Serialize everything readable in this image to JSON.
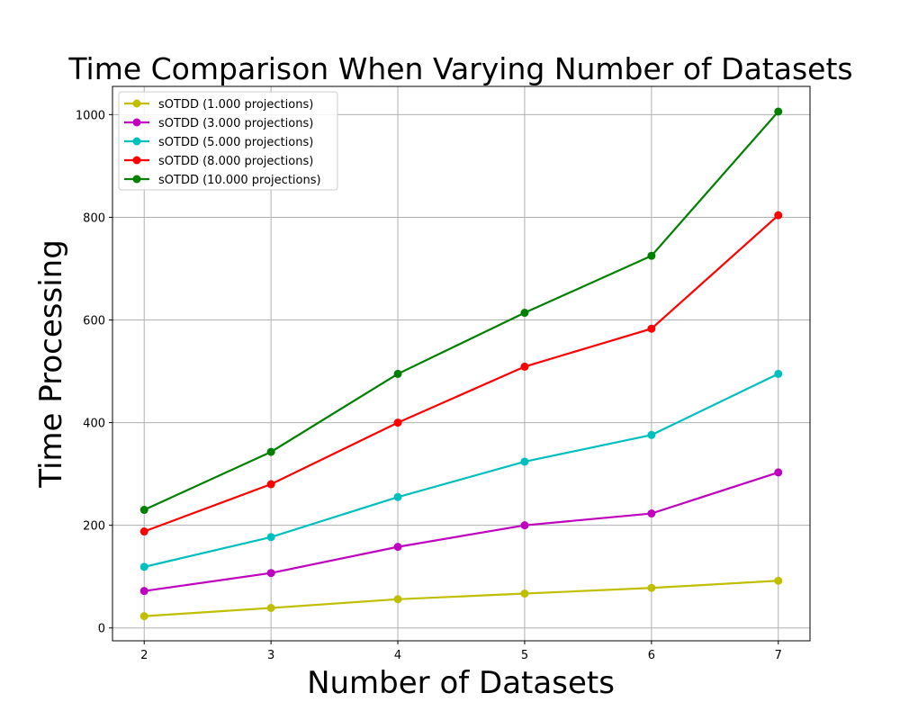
{
  "chart_data": {
    "type": "line",
    "title": "Time Comparison When Varying Number of Datasets",
    "xlabel": "Number of Datasets",
    "ylabel": "Time Processing",
    "x": [
      2,
      3,
      4,
      5,
      6,
      7
    ],
    "xticks": [
      "2",
      "3",
      "4",
      "5",
      "6",
      "7"
    ],
    "yticks": [
      "0",
      "200",
      "400",
      "600",
      "800",
      "1000"
    ],
    "xlim": [
      1.75,
      7.25
    ],
    "ylim": [
      -25,
      1055
    ],
    "grid": true,
    "legend_position": "top-left",
    "series": [
      {
        "name": "sOTDD (1.000 projections)",
        "color": "#bfbf00",
        "values": [
          23,
          39,
          56,
          67,
          78,
          92
        ]
      },
      {
        "name": "sOTDD (3.000 projections)",
        "color": "#bf00bf",
        "values": [
          72,
          107,
          158,
          200,
          223,
          303
        ]
      },
      {
        "name": "sOTDD (5.000 projections)",
        "color": "#00bfbf",
        "values": [
          119,
          177,
          255,
          324,
          376,
          495
        ]
      },
      {
        "name": "sOTDD (8.000 projections)",
        "color": "#ff0000",
        "values": [
          188,
          280,
          400,
          509,
          583,
          804
        ]
      },
      {
        "name": "sOTDD (10.000 projections)",
        "color": "#008000",
        "values": [
          230,
          343,
          495,
          614,
          725,
          1006
        ]
      }
    ]
  }
}
